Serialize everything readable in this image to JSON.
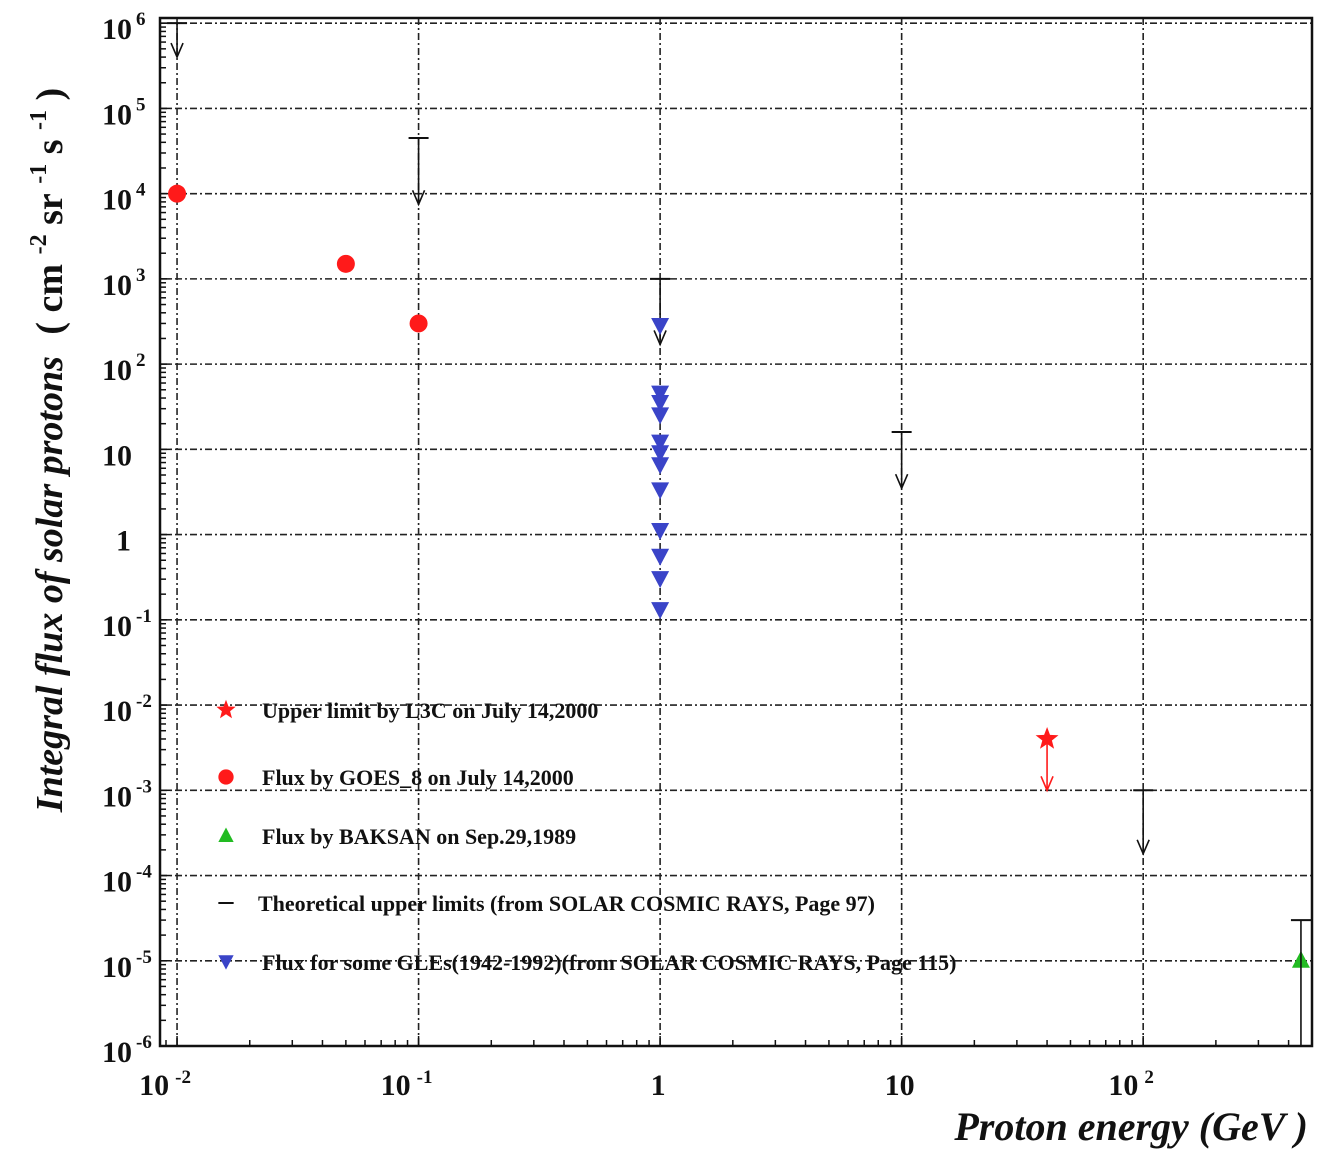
{
  "chart_data": {
    "type": "scatter",
    "title": "",
    "xlabel": "Proton energy  (GeV )",
    "ylabel_text": "Integral flux of solar protons",
    "ylabel_unit": "( cm",
    "ylabel_unit_parts": [
      "( cm",
      "-2",
      "sr",
      "-1",
      "s",
      "-1",
      " )"
    ],
    "x_scale": "log",
    "y_scale": "log",
    "xlim": [
      0.0085,
      500
    ],
    "ylim": [
      1e-06,
      1150000.0
    ],
    "grid": true,
    "legend_position": "lower-left",
    "x_ticks": [
      {
        "value": 0.01,
        "base": "10",
        "exp": "-2"
      },
      {
        "value": 0.1,
        "base": "10",
        "exp": "-1"
      },
      {
        "value": 1,
        "base": "1",
        "exp": ""
      },
      {
        "value": 10,
        "base": "10",
        "exp": ""
      },
      {
        "value": 100,
        "base": "10",
        "exp": "2"
      }
    ],
    "y_ticks": [
      {
        "value": 1000000.0,
        "base": "10",
        "exp": "6"
      },
      {
        "value": 100000.0,
        "base": "10",
        "exp": "5"
      },
      {
        "value": 10000.0,
        "base": "10",
        "exp": "4"
      },
      {
        "value": 1000.0,
        "base": "10",
        "exp": "3"
      },
      {
        "value": 100.0,
        "base": "10",
        "exp": "2"
      },
      {
        "value": 10,
        "base": "10",
        "exp": ""
      },
      {
        "value": 1,
        "base": "1",
        "exp": ""
      },
      {
        "value": 0.1,
        "base": "10",
        "exp": "-1"
      },
      {
        "value": 0.01,
        "base": "10",
        "exp": "-2"
      },
      {
        "value": 0.001,
        "base": "10",
        "exp": "-3"
      },
      {
        "value": 0.0001,
        "base": "10",
        "exp": "-4"
      },
      {
        "value": 1e-05,
        "base": "10",
        "exp": "-5"
      },
      {
        "value": 1e-06,
        "base": "10",
        "exp": "-6"
      }
    ],
    "series": [
      {
        "name": "Upper limit by L3C on July 14,2000",
        "marker": "star",
        "color": "#ff1a1a",
        "points": [
          {
            "x": 40,
            "y": 0.004,
            "arrow_to": 0.001
          }
        ]
      },
      {
        "name": "Flux by GOES_8 on July 14,2000",
        "marker": "circle",
        "color": "#ff1a1a",
        "points": [
          {
            "x": 0.01,
            "y": 10000
          },
          {
            "x": 0.05,
            "y": 1500
          },
          {
            "x": 0.1,
            "y": 300
          }
        ]
      },
      {
        "name": "Flux by BAKSAN on Sep.29,1989",
        "marker": "triangle-up",
        "color": "#22bb22",
        "points": [
          {
            "x": 450,
            "y": 1e-05
          }
        ]
      },
      {
        "name": "Theoretical upper limits (from SOLAR COSMIC RAYS, Page 97)",
        "marker": "hbar",
        "color": "#111111",
        "points": [
          {
            "x": 0.01,
            "y": 1000000,
            "arrow_to": 400000
          },
          {
            "x": 0.1,
            "y": 45000,
            "arrow_to": 7500
          },
          {
            "x": 1,
            "y": 1000,
            "arrow_to": 170
          },
          {
            "x": 10,
            "y": 16,
            "arrow_to": 3.5
          },
          {
            "x": 100,
            "y": 0.001,
            "arrow_to": 0.00018
          },
          {
            "x": 450,
            "y": 3e-05,
            "arrow_to": 1e-06
          }
        ]
      },
      {
        "name": "Flux for some GLEs(1942-1992)(from SOLAR COSMIC RAYS, Page 115)",
        "marker": "triangle-down",
        "color": "#3a44c8",
        "points": [
          {
            "x": 1,
            "y": 280
          },
          {
            "x": 1,
            "y": 45
          },
          {
            "x": 1,
            "y": 35
          },
          {
            "x": 1,
            "y": 25
          },
          {
            "x": 1,
            "y": 12
          },
          {
            "x": 1,
            "y": 9
          },
          {
            "x": 1,
            "y": 6.5
          },
          {
            "x": 1,
            "y": 3.3
          },
          {
            "x": 1,
            "y": 1.1
          },
          {
            "x": 1,
            "y": 0.55
          },
          {
            "x": 1,
            "y": 0.3
          },
          {
            "x": 1,
            "y": 0.13
          }
        ]
      }
    ]
  }
}
